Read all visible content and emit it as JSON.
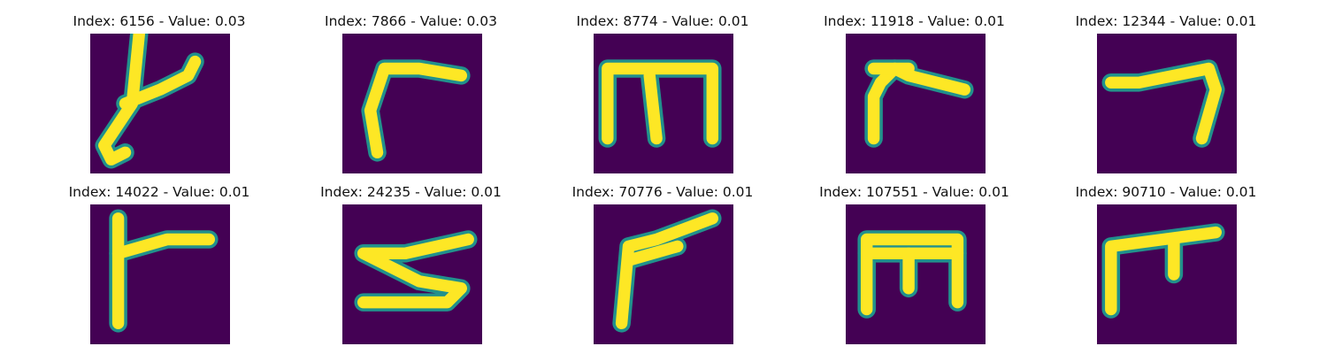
{
  "chart_data": {
    "type": "heatmap",
    "colormap": "viridis",
    "background_color": "#440154",
    "stroke_color": "#fde725",
    "edge_color": "#21918c",
    "axes": "off",
    "layout": {
      "rows": 2,
      "cols": 5
    },
    "panels": [
      {
        "title": "Index: 6156 - Value: 0.03",
        "index": 6156,
        "value": 0.03,
        "glyph": [
          "M7,0 L6,10 L2,16 L3,18 L5,17",
          "M5,10 L10,8 L14,6 L15,4"
        ]
      },
      {
        "title": "Index: 7866 - Value: 0.03",
        "index": 7866,
        "value": 0.03,
        "glyph": [
          "M5,17 L4,11 L6,5 L11,5 L17,6"
        ]
      },
      {
        "title": "Index: 8774 - Value: 0.01",
        "index": 8774,
        "value": 0.01,
        "glyph": [
          "M2,15 L2,5 L17,5 L17,15",
          "M8,6 L9,15"
        ]
      },
      {
        "title": "Index: 11918 - Value: 0.01",
        "index": 11918,
        "value": 0.01,
        "glyph": [
          "M4,15 L4,9 L5,7 L7,5 L9,6 L17,8",
          "M4,5 L9,5"
        ]
      },
      {
        "title": "Index: 12344 - Value: 0.01",
        "index": 12344,
        "value": 0.01,
        "glyph": [
          "M2,7 L6,7 L11,6 L16,5 L17,8 L15,15"
        ]
      },
      {
        "title": "Index: 14022 - Value: 0.01",
        "index": 14022,
        "value": 0.01,
        "glyph": [
          "M4,2 L4,17",
          "M4,7 L11,5 L17,5"
        ]
      },
      {
        "title": "Index: 24235 - Value: 0.01",
        "index": 24235,
        "value": 0.01,
        "glyph": [
          "M18,5 L9,7 L3,7 L11,11 L17,12 L15,14 L3,14"
        ]
      },
      {
        "title": "Index: 70776 - Value: 0.01",
        "index": 70776,
        "value": 0.01,
        "glyph": [
          "M4,17 L5,6 L9,5 L17,2",
          "M5,8 L12,6"
        ]
      },
      {
        "title": "Index: 107551 - Value: 0.01",
        "index": 107551,
        "value": 0.01,
        "glyph": [
          "M3,15 L3,5 L16,5 L16,14",
          "M3,7 L16,7",
          "M9,7 L9,12"
        ]
      },
      {
        "title": "Index: 90710 - Value: 0.01",
        "index": 90710,
        "value": 0.01,
        "glyph": [
          "M2,15 L2,6 L17,4",
          "M11,5 L11,10"
        ]
      }
    ]
  }
}
